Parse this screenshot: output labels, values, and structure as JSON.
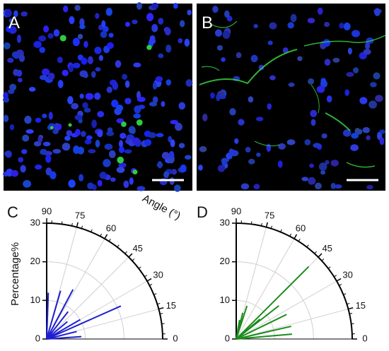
{
  "panels": [
    {
      "label": "A"
    },
    {
      "label": "B"
    }
  ],
  "chart_data": [
    {
      "type": "polar",
      "panel": "C",
      "xlabel": "Angle (°)",
      "ylabel": "Percentage%",
      "x": [
        88,
        74,
        62,
        52,
        40,
        30,
        24,
        14,
        4
      ],
      "values": [
        12,
        13,
        14.5,
        9,
        7,
        10,
        21,
        8,
        9
      ],
      "color": "#1f1fd0",
      "xlim": [
        0,
        90
      ],
      "xticks": [
        0,
        15,
        30,
        45,
        60,
        75,
        90
      ],
      "ylim": [
        0,
        30
      ],
      "yticks": [
        0,
        10,
        20,
        30
      ],
      "grid": true
    },
    {
      "type": "polar",
      "panel": "D",
      "x": [
        80,
        76,
        72,
        45,
        40,
        38,
        26,
        13,
        5
      ],
      "values": [
        5,
        7,
        9,
        26.5,
        8,
        14,
        14.5,
        14.6,
        14.5
      ],
      "color": "#1a8c1a",
      "xlim": [
        0,
        90
      ],
      "xticks": [
        0,
        15,
        30,
        45,
        60,
        75,
        90
      ],
      "ylim": [
        0,
        30
      ],
      "yticks": [
        0,
        10,
        20,
        30
      ],
      "grid": true
    }
  ]
}
